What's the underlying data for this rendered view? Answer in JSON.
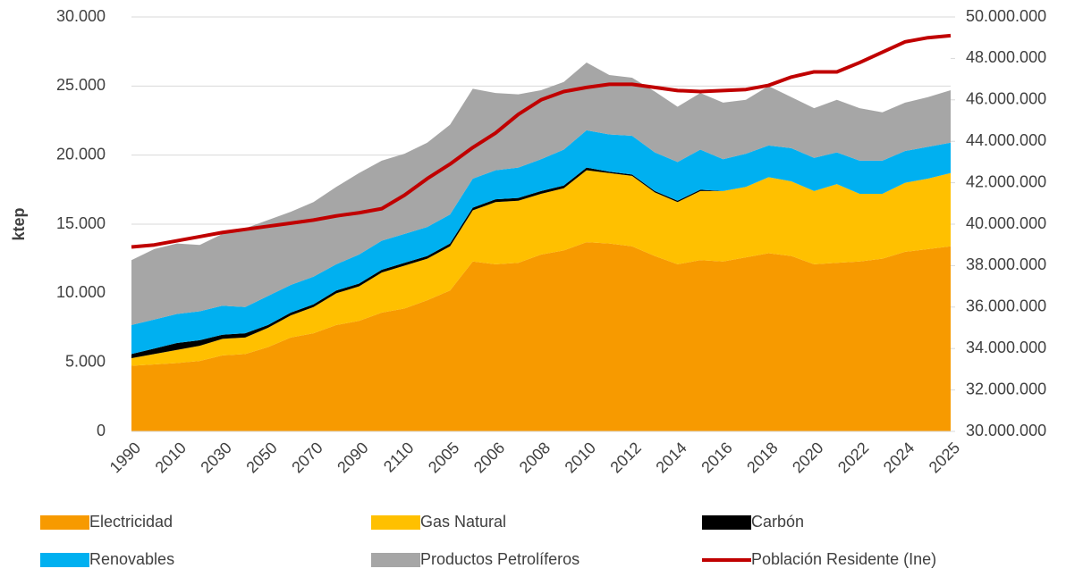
{
  "chart_data": {
    "type": "stacked_area_line",
    "y_label": "ktep",
    "categories": [
      "1990",
      null,
      "2010",
      null,
      "2030",
      null,
      "2050",
      null,
      "2070",
      null,
      "2090",
      null,
      "2110",
      null,
      "2005",
      null,
      "2006",
      null,
      "2008",
      null,
      "2010",
      null,
      "2012",
      null,
      "2014",
      null,
      "2016",
      null,
      "2018",
      null,
      "2020",
      null,
      "2022",
      null,
      "2024",
      null,
      "2025"
    ],
    "ylim": [
      0,
      30000
    ],
    "yticks": [
      0,
      {
        "value": 5000,
        "label": "5.000"
      },
      {
        "value": 10000,
        "label": "10.000"
      },
      {
        "value": 15000,
        "label": "15.000"
      },
      {
        "value": 20000,
        "label": "20.000"
      },
      {
        "value": 25000,
        "label": "25.000"
      },
      {
        "value": 30000,
        "label": "30.000"
      }
    ],
    "y2lim": [
      30000000,
      50000000
    ],
    "y2ticks": [
      {
        "value": 30000000,
        "label": "30.000.000"
      },
      {
        "value": 32000000,
        "label": "32.000.000"
      },
      {
        "value": 34000000,
        "label": "34.000.000"
      },
      {
        "value": 36000000,
        "label": "36.000.000"
      },
      {
        "value": 38000000,
        "label": "38.000.000"
      },
      {
        "value": 40000000,
        "label": "40.000.000"
      },
      {
        "value": 42000000,
        "label": "42.000.000"
      },
      {
        "value": 44000000,
        "label": "44.000.000"
      },
      {
        "value": 46000000,
        "label": "46.000.000"
      },
      {
        "value": 48000000,
        "label": "48.000.000"
      },
      {
        "value": 50000000,
        "label": "50.000.000"
      }
    ],
    "grid": true,
    "legend": "bottom",
    "series": [
      {
        "name": "Electricidad",
        "color": "#f79a00",
        "values": [
          4750,
          4850,
          4950,
          5100,
          5500,
          5600,
          6100,
          6800,
          7100,
          7700,
          8000,
          8600,
          8900,
          9500,
          10200,
          12300,
          12100,
          12200,
          12800,
          13100,
          13700,
          13600,
          13400,
          12700,
          12100,
          12400,
          12300,
          12600,
          12900,
          12700,
          12100,
          12200,
          12300,
          12500,
          13000,
          13200,
          13400
        ]
      },
      {
        "name": "Gas Natural",
        "color": "#ffc000",
        "values": [
          550,
          750,
          950,
          1100,
          1200,
          1200,
          1400,
          1600,
          1900,
          2300,
          2500,
          2900,
          3100,
          3000,
          3200,
          3700,
          4500,
          4500,
          4400,
          4500,
          5200,
          5100,
          5100,
          4600,
          4500,
          5000,
          5100,
          5100,
          5500,
          5400,
          5300,
          5700,
          4900,
          4700,
          5000,
          5100,
          5300
        ]
      },
      {
        "name": "Carbón",
        "color": "#000000",
        "values": [
          300,
          400,
          500,
          400,
          300,
          300,
          200,
          200,
          200,
          200,
          200,
          200,
          200,
          200,
          200,
          200,
          200,
          200,
          200,
          200,
          200,
          100,
          100,
          100,
          100,
          100,
          0,
          0,
          0,
          0,
          0,
          0,
          0,
          0,
          0,
          0,
          0
        ]
      },
      {
        "name": "Renovables",
        "color": "#00b0f0",
        "values": [
          2100,
          2100,
          2100,
          2100,
          2100,
          1900,
          2100,
          2000,
          2000,
          1900,
          2100,
          2100,
          2100,
          2100,
          2100,
          2100,
          2100,
          2200,
          2300,
          2600,
          2700,
          2700,
          2800,
          2800,
          2800,
          2900,
          2300,
          2400,
          2300,
          2400,
          2400,
          2300,
          2400,
          2400,
          2300,
          2300,
          2200
        ]
      },
      {
        "name": "Productos Petrolíferos",
        "color": "#a6a6a6",
        "values": [
          4700,
          5100,
          5100,
          4800,
          5200,
          5700,
          5500,
          5300,
          5400,
          5600,
          5900,
          5800,
          5800,
          6100,
          6500,
          6500,
          5600,
          5300,
          5000,
          4900,
          4900,
          4300,
          4200,
          4400,
          4000,
          4100,
          4100,
          3900,
          4300,
          3700,
          3600,
          3800,
          3800,
          3500,
          3500,
          3600,
          3800
        ]
      },
      {
        "name": "Población Residente (Ine)",
        "color": "#c00000",
        "axis": "y2",
        "values": [
          38900000,
          39000000,
          39200000,
          39400000,
          39600000,
          39750000,
          39900000,
          40050000,
          40200000,
          40400000,
          40550000,
          40750000,
          41400000,
          42200000,
          42900000,
          43700000,
          44400000,
          45300000,
          46000000,
          46400000,
          46600000,
          46750000,
          46750000,
          46600000,
          46450000,
          46400000,
          46450000,
          46500000,
          46700000,
          47100000,
          47350000,
          47350000,
          47800000,
          48300000,
          48800000,
          49000000,
          49100000
        ]
      }
    ]
  }
}
